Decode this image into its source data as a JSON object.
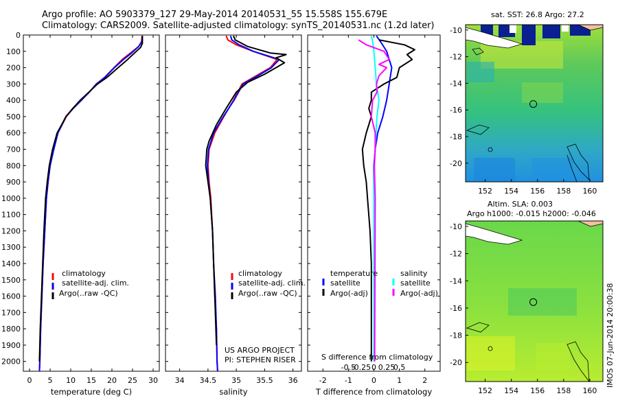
{
  "header": {
    "line1": "Argo profile: AO 5903379_127 29-May-2014 20140531_55 15.558S 155.679E",
    "line2": "Climatology: CARS2009. Satellite-adjusted climatology: synTS_20140531.nc (1.2d later)"
  },
  "colors": {
    "climatology": "#ff0000",
    "satellite": "#0000ff",
    "argo": "#000000",
    "salinity_satellite": "#00ffff",
    "salinity_argo": "#ff00ff"
  },
  "chart_data": [
    {
      "id": "temperature",
      "type": "line",
      "xlabel": "temperature (deg C)",
      "ylabel": "",
      "xlim": [
        -1.5,
        31.5
      ],
      "ylim": [
        0,
        2060
      ],
      "xticks": [
        0,
        5,
        10,
        15,
        20,
        25,
        30
      ],
      "xtick_labels": [
        "0",
        "5",
        "10",
        "15",
        "20",
        "25",
        "30"
      ],
      "yticks": [
        0,
        100,
        200,
        300,
        400,
        500,
        600,
        700,
        800,
        900,
        1000,
        1100,
        1200,
        1300,
        1400,
        1500,
        1600,
        1700,
        1800,
        1900,
        2000
      ],
      "ytick_labels": [
        "0",
        "100",
        "200",
        "300",
        "400",
        "500",
        "600",
        "700",
        "800",
        "900",
        "1000",
        "1100",
        "1200",
        "1300",
        "1400",
        "1500",
        "1600",
        "1700",
        "1800",
        "1900",
        "2000"
      ],
      "legend": [
        "climatology",
        "satellite-adj. clim.",
        "Argo(..raw -QC)"
      ],
      "series": [
        {
          "name": "climatology",
          "points": [
            [
              27.3,
              5
            ],
            [
              27.2,
              40
            ],
            [
              26.5,
              70
            ],
            [
              24.5,
              110
            ],
            [
              22.5,
              150
            ],
            [
              20.5,
              200
            ],
            [
              18.2,
              260
            ],
            [
              16.3,
              300
            ],
            [
              14.5,
              350
            ],
            [
              12.5,
              400
            ],
            [
              10.5,
              450
            ],
            [
              8.8,
              500
            ],
            [
              7.8,
              550
            ],
            [
              6.8,
              600
            ],
            [
              5.8,
              700
            ],
            [
              5.0,
              800
            ],
            [
              4.5,
              900
            ],
            [
              4.1,
              1000
            ],
            [
              3.7,
              1200
            ],
            [
              3.3,
              1400
            ],
            [
              3.0,
              1600
            ],
            [
              2.7,
              1800
            ],
            [
              2.5,
              2000
            ],
            [
              2.4,
              2060
            ]
          ]
        },
        {
          "name": "satellite",
          "points": [
            [
              27.4,
              5
            ],
            [
              27.3,
              40
            ],
            [
              26.5,
              70
            ],
            [
              24.8,
              110
            ],
            [
              22.8,
              150
            ],
            [
              20.6,
              200
            ],
            [
              18.3,
              260
            ],
            [
              16.2,
              300
            ],
            [
              14.5,
              350
            ],
            [
              12.6,
              400
            ],
            [
              10.6,
              450
            ],
            [
              8.9,
              500
            ],
            [
              7.9,
              550
            ],
            [
              6.9,
              600
            ],
            [
              5.9,
              700
            ],
            [
              5.0,
              800
            ],
            [
              4.5,
              900
            ],
            [
              4.1,
              1000
            ],
            [
              3.7,
              1200
            ],
            [
              3.3,
              1400
            ],
            [
              3.0,
              1600
            ],
            [
              2.7,
              1800
            ],
            [
              2.5,
              2000
            ],
            [
              2.4,
              2060
            ]
          ]
        },
        {
          "name": "argo",
          "points": [
            [
              27.4,
              5
            ],
            [
              27.4,
              50
            ],
            [
              27.0,
              75
            ],
            [
              25.5,
              110
            ],
            [
              23.8,
              150
            ],
            [
              21.5,
              200
            ],
            [
              18.8,
              260
            ],
            [
              16.5,
              300
            ],
            [
              14.4,
              350
            ],
            [
              12.3,
              400
            ],
            [
              10.5,
              450
            ],
            [
              8.9,
              500
            ],
            [
              7.8,
              550
            ],
            [
              6.7,
              600
            ],
            [
              5.6,
              700
            ],
            [
              4.8,
              800
            ],
            [
              4.3,
              900
            ],
            [
              3.9,
              1000
            ],
            [
              3.5,
              1200
            ],
            [
              3.2,
              1400
            ],
            [
              2.9,
              1600
            ],
            [
              2.6,
              1800
            ],
            [
              2.4,
              2000
            ]
          ]
        }
      ]
    },
    {
      "id": "salinity",
      "type": "line",
      "xlabel": "salinity",
      "xlim": [
        33.75,
        36.15
      ],
      "ylim": [
        0,
        2060
      ],
      "xticks": [
        34,
        34.5,
        35,
        35.5,
        36
      ],
      "xtick_labels": [
        "34",
        "34.5",
        "35",
        "35.5",
        "36"
      ],
      "legend": [
        "climatology",
        "satellite-adj. clim.",
        "Argo(..raw -QC)"
      ],
      "annotations": [
        "US ARGO PROJECT",
        "PI: STEPHEN RISER"
      ],
      "series": [
        {
          "name": "climatology",
          "points": [
            [
              34.82,
              5
            ],
            [
              34.85,
              30
            ],
            [
              35.0,
              60
            ],
            [
              35.3,
              100
            ],
            [
              35.72,
              150
            ],
            [
              35.6,
              200
            ],
            [
              35.35,
              250
            ],
            [
              35.1,
              300
            ],
            [
              34.95,
              400
            ],
            [
              34.78,
              500
            ],
            [
              34.62,
              600
            ],
            [
              34.52,
              700
            ],
            [
              34.5,
              800
            ],
            [
              34.52,
              900
            ],
            [
              34.55,
              1000
            ],
            [
              34.58,
              1200
            ],
            [
              34.6,
              1400
            ],
            [
              34.62,
              1600
            ],
            [
              34.65,
              1800
            ],
            [
              34.66,
              2000
            ],
            [
              34.67,
              2060
            ]
          ]
        },
        {
          "name": "satellite",
          "points": [
            [
              34.9,
              5
            ],
            [
              34.92,
              30
            ],
            [
              35.05,
              60
            ],
            [
              35.3,
              100
            ],
            [
              35.76,
              150
            ],
            [
              35.62,
              200
            ],
            [
              35.38,
              250
            ],
            [
              35.12,
              300
            ],
            [
              34.96,
              400
            ],
            [
              34.77,
              500
            ],
            [
              34.6,
              600
            ],
            [
              34.51,
              700
            ],
            [
              34.49,
              800
            ],
            [
              34.51,
              900
            ],
            [
              34.54,
              1000
            ],
            [
              34.58,
              1200
            ],
            [
              34.6,
              1400
            ],
            [
              34.63,
              1600
            ],
            [
              34.65,
              1800
            ],
            [
              34.66,
              2000
            ],
            [
              34.67,
              2060
            ]
          ]
        },
        {
          "name": "argo",
          "points": [
            [
              34.95,
              5
            ],
            [
              34.98,
              30
            ],
            [
              35.2,
              70
            ],
            [
              35.6,
              110
            ],
            [
              35.88,
              120
            ],
            [
              35.7,
              140
            ],
            [
              35.85,
              170
            ],
            [
              35.75,
              190
            ],
            [
              35.5,
              240
            ],
            [
              35.2,
              290
            ],
            [
              35.0,
              350
            ],
            [
              34.82,
              450
            ],
            [
              34.65,
              550
            ],
            [
              34.52,
              650
            ],
            [
              34.48,
              700
            ],
            [
              34.46,
              800
            ],
            [
              34.5,
              900
            ],
            [
              34.54,
              1000
            ],
            [
              34.58,
              1200
            ],
            [
              34.6,
              1400
            ],
            [
              34.62,
              1600
            ],
            [
              34.64,
              1800
            ],
            [
              34.65,
              1900
            ]
          ]
        }
      ]
    },
    {
      "id": "difference",
      "type": "line",
      "xlabel": "T difference from climatology",
      "top_label": "S difference from climatology",
      "xlim": [
        -2.6,
        2.6
      ],
      "ylim": [
        0,
        2060
      ],
      "xticks": [
        -2,
        -1,
        0,
        1,
        2
      ],
      "xtick_labels": [
        "-2",
        "-1",
        "0",
        "1",
        "2"
      ],
      "sticks": [
        -1,
        -0.5,
        0,
        0.5,
        1
      ],
      "stick_labels": [
        "-0.5",
        "-0.25",
        "0",
        "0.25",
        "0.5"
      ],
      "legend_temperature": [
        "temperature",
        "satellite",
        "Argo(-adj)"
      ],
      "legend_salinity": [
        "salinity",
        "satellite",
        "Argo(-adj)"
      ],
      "series": [
        {
          "name": "temperature-satellite",
          "color_key": "satellite",
          "points": [
            [
              0.1,
              5
            ],
            [
              0.3,
              50
            ],
            [
              0.5,
              100
            ],
            [
              0.7,
              200
            ],
            [
              0.6,
              300
            ],
            [
              0.5,
              400
            ],
            [
              0.35,
              500
            ],
            [
              0.15,
              600
            ],
            [
              0.05,
              700
            ],
            [
              0,
              800
            ],
            [
              0,
              1000
            ],
            [
              0,
              2000
            ]
          ]
        },
        {
          "name": "temperature-argo",
          "color_key": "argo",
          "points": [
            [
              0.2,
              30
            ],
            [
              1.2,
              60
            ],
            [
              1.6,
              90
            ],
            [
              1.3,
              120
            ],
            [
              1.5,
              150
            ],
            [
              1.0,
              200
            ],
            [
              0.9,
              260
            ],
            [
              0.4,
              300
            ],
            [
              -0.1,
              350
            ],
            [
              -0.1,
              400
            ],
            [
              -0.2,
              450
            ],
            [
              -0.1,
              500
            ],
            [
              -0.3,
              600
            ],
            [
              -0.45,
              700
            ],
            [
              -0.4,
              800
            ],
            [
              -0.3,
              900
            ],
            [
              -0.25,
              1000
            ],
            [
              -0.15,
              1200
            ],
            [
              -0.1,
              1400
            ],
            [
              -0.1,
              1600
            ],
            [
              -0.1,
              1800
            ],
            [
              -0.1,
              2000
            ]
          ]
        },
        {
          "name": "salinity-satellite",
          "color_key": "salinity_satellite",
          "points": [
            [
              -0.1,
              5
            ],
            [
              -0.05,
              40
            ],
            [
              0,
              100
            ],
            [
              0.05,
              200
            ],
            [
              0.1,
              300
            ],
            [
              0.2,
              400
            ],
            [
              0.12,
              500
            ],
            [
              0.08,
              600
            ],
            [
              0.05,
              700
            ],
            [
              0.02,
              800
            ],
            [
              0,
              1000
            ],
            [
              0,
              2000
            ]
          ]
        },
        {
          "name": "salinity-argo",
          "color_key": "salinity_argo",
          "points": [
            [
              -0.6,
              30
            ],
            [
              -0.3,
              60
            ],
            [
              0.4,
              100
            ],
            [
              0.6,
              150
            ],
            [
              0.2,
              180
            ],
            [
              0.5,
              200
            ],
            [
              0.2,
              250
            ],
            [
              0.1,
              300
            ],
            [
              0.12,
              350
            ],
            [
              -0.05,
              400
            ],
            [
              -0.1,
              500
            ],
            [
              0.05,
              600
            ],
            [
              0.05,
              700
            ],
            [
              0.02,
              800
            ],
            [
              0.05,
              1000
            ],
            [
              0.03,
              2000
            ]
          ]
        }
      ]
    }
  ],
  "maps": {
    "sst": {
      "title": "sat. SST: 26.8 Argo: 27.2",
      "xtick_labels": [
        "152",
        "154",
        "156",
        "158",
        "160"
      ],
      "ytick_labels": [
        "-10",
        "-12",
        "-14",
        "-16",
        "-18",
        "-20"
      ],
      "argo_lon": 155.679,
      "argo_lat": -15.558
    },
    "sla": {
      "title1": "Altim. SLA: 0.003",
      "title2": "Argo h1000: -0.015 h2000: -0.046",
      "xtick_labels": [
        "152",
        "154",
        "156",
        "158",
        "160"
      ],
      "ytick_labels": [
        "-10",
        "-12",
        "-14",
        "-16",
        "-18",
        "-20"
      ],
      "argo_lon": 155.679,
      "argo_lat": -15.558
    },
    "credit": "IMOS 07-Jun-2014 20:00:38"
  }
}
